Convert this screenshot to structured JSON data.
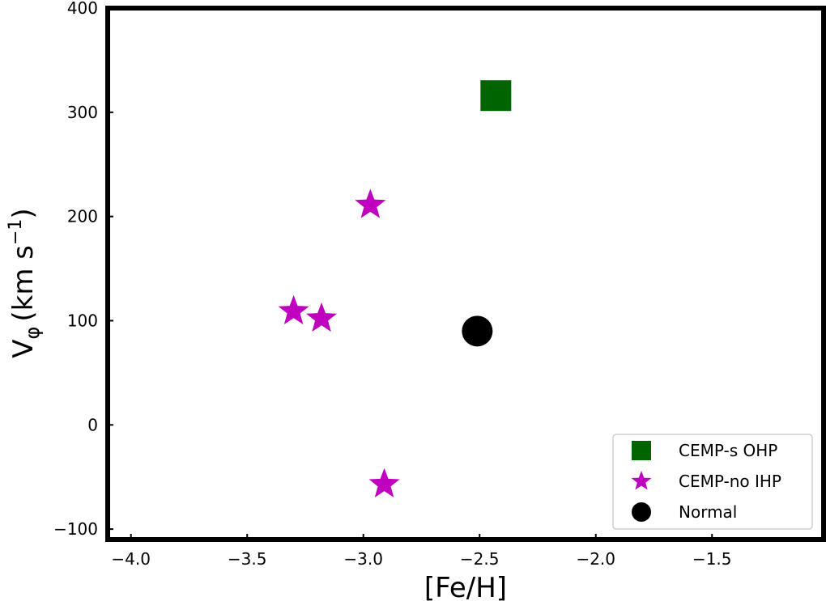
{
  "chart_data": {
    "type": "scatter",
    "xlabel": "[Fe/H]",
    "ylabel": "V",
    "ylabel_sub": "φ",
    "ylabel_units": "(km s",
    "ylabel_exp": "−1",
    "ylabel_close": ")",
    "xlim": [
      -4.1,
      -1.02
    ],
    "ylim": [
      -110,
      400
    ],
    "xticks": [
      -4.0,
      -3.5,
      -3.0,
      -2.5,
      -2.0,
      -1.5
    ],
    "xtick_labels": [
      "−4.0",
      "−3.5",
      "−3.0",
      "−2.5",
      "−2.0",
      "−1.5"
    ],
    "yticks": [
      -100,
      0,
      100,
      200,
      300,
      400
    ],
    "ytick_labels": [
      "−100",
      "0",
      "100",
      "200",
      "300",
      "400"
    ],
    "grid": false,
    "legend_position": "lower-right",
    "series": [
      {
        "name": "CEMP-s OHP",
        "marker": "square",
        "color": "#006400",
        "points": [
          [
            -2.43,
            316
          ]
        ]
      },
      {
        "name": "CEMP-no IHP",
        "marker": "star",
        "color": "#bf00bf",
        "points": [
          [
            -2.97,
            211
          ],
          [
            -3.3,
            109
          ],
          [
            -3.18,
            102
          ],
          [
            -2.91,
            -57
          ]
        ]
      },
      {
        "name": "Normal",
        "marker": "circle",
        "color": "#000000",
        "points": [
          [
            -2.51,
            90
          ]
        ]
      }
    ]
  }
}
